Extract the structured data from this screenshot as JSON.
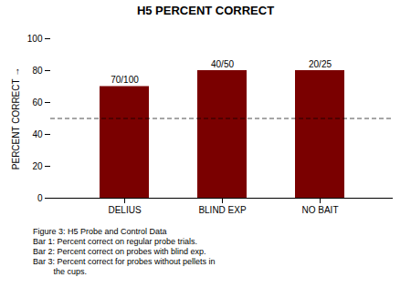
{
  "chart_data": {
    "type": "bar",
    "title": "H5 PERCENT CORRECT",
    "categories": [
      "DELIUS",
      "BLIND EXP",
      "NO BAIT"
    ],
    "values": [
      70.0,
      80.0,
      80.0
    ],
    "value_labels": [
      "70/100",
      "40/50",
      "20/25"
    ],
    "data_labels": true,
    "color": "#7a0000",
    "ylabel": "PERCENT CORRECT",
    "ylim": [
      0,
      100
    ],
    "yticks": [
      0,
      20,
      40,
      60,
      80,
      100
    ],
    "grid": false,
    "reference_line": {
      "y": 50,
      "line_style": "dashed"
    },
    "caption": "Figure 3: H5 Probe and Control Data\nBar 1: Percent correct on regular probe trials.\nBar 2: Percent correct on probes with blind exp.\nBar 3: Percent correct for probes without pellets in\n         the cups."
  }
}
